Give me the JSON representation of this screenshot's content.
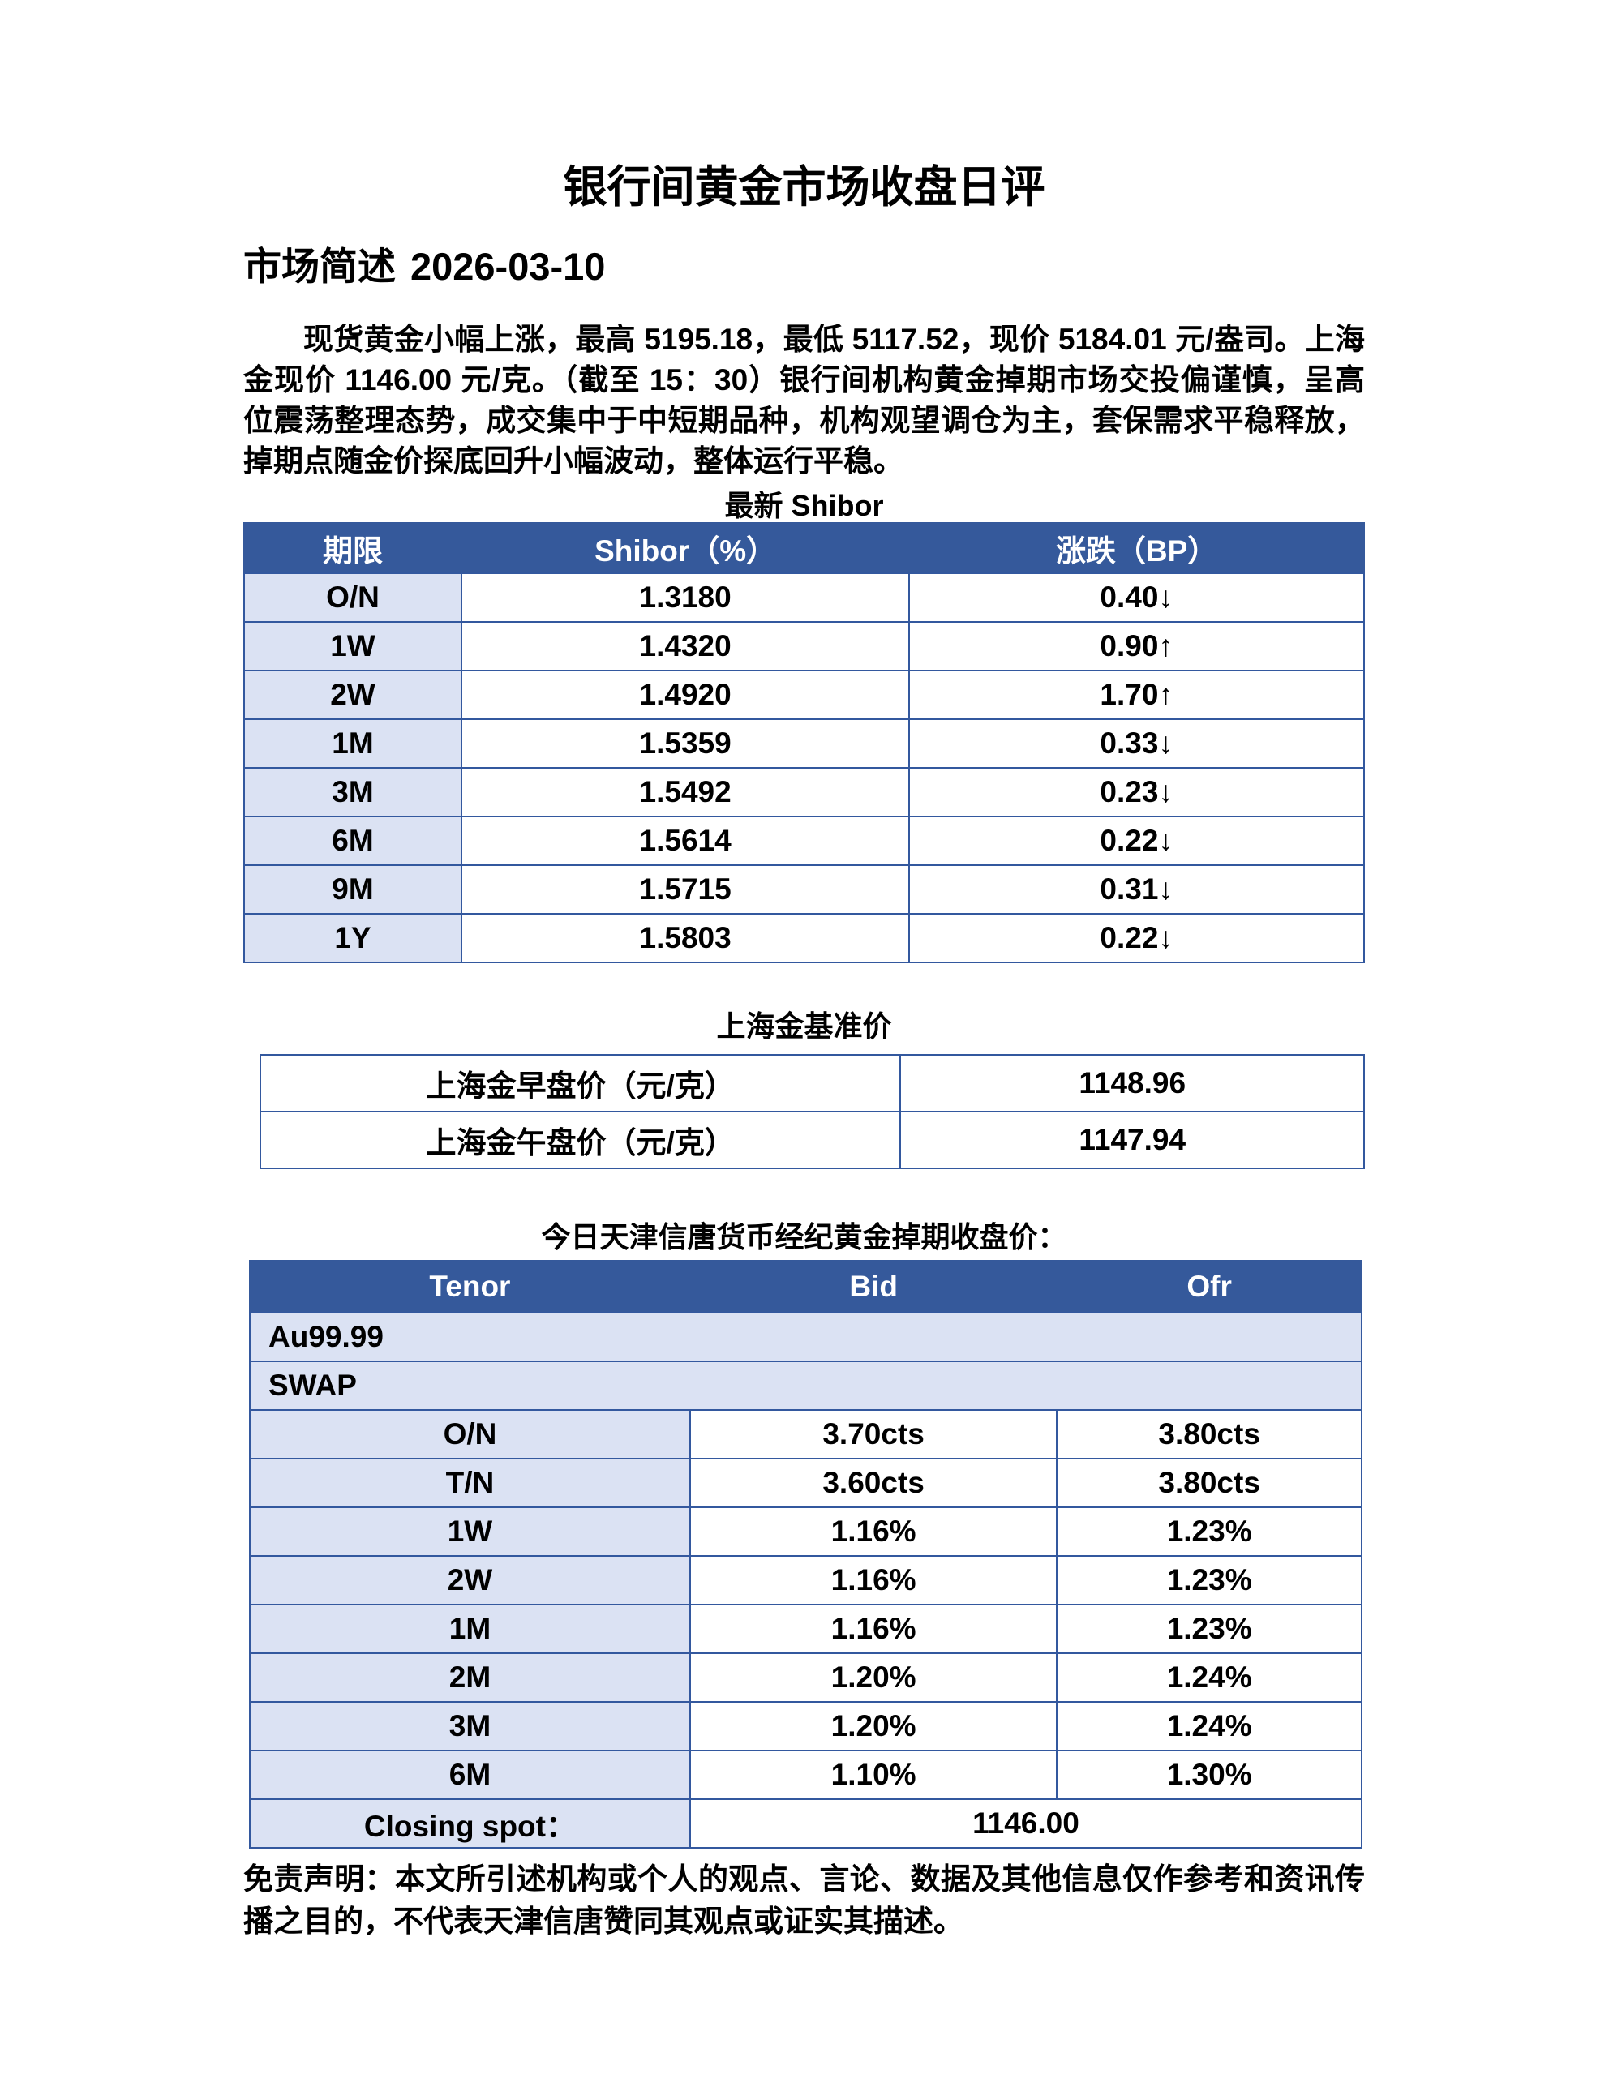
{
  "doc": {
    "title": "银行间黄金市场收盘日评",
    "section_heading": "市场简述",
    "date": "2026-03-10",
    "summary": "现货黄金小幅上涨，最高 5195.18，最低 5117.52，现价 5184.01 元/盎司。上海金现价 1146.00 元/克。（截至 15：30）银行间机构黄金掉期市场交投偏谨慎，呈高位震荡整理态势，成交集中于中短期品种，机构观望调仓为主，套保需求平稳释放，掉期点随金价探底回升小幅波动，整体运行平稳。",
    "disclaimer": "免责声明：本文所引述机构或个人的观点、言论、数据及其他信息仅作参考和资讯传播之目的，不代表天津信唐赞同其观点或证实其描述。"
  },
  "shibor_table": {
    "title": "最新 Shibor",
    "headers": [
      "期限",
      "Shibor（%）",
      "涨跌（BP）"
    ],
    "rows": [
      {
        "tenor": "O/N",
        "rate": "1.3180",
        "change": "0.40",
        "arrow": "↓"
      },
      {
        "tenor": "1W",
        "rate": "1.4320",
        "change": "0.90",
        "arrow": "↑"
      },
      {
        "tenor": "2W",
        "rate": "1.4920",
        "change": "1.70",
        "arrow": "↑"
      },
      {
        "tenor": "1M",
        "rate": "1.5359",
        "change": "0.33",
        "arrow": "↓"
      },
      {
        "tenor": "3M",
        "rate": "1.5492",
        "change": "0.23",
        "arrow": "↓"
      },
      {
        "tenor": "6M",
        "rate": "1.5614",
        "change": "0.22",
        "arrow": "↓"
      },
      {
        "tenor": "9M",
        "rate": "1.5715",
        "change": "0.31",
        "arrow": "↓"
      },
      {
        "tenor": "1Y",
        "rate": "1.5803",
        "change": "0.22",
        "arrow": "↓"
      }
    ]
  },
  "sh_gold_table": {
    "title": "上海金基准价",
    "rows": [
      {
        "label": "上海金早盘价（元/克）",
        "value": "1148.96"
      },
      {
        "label": "上海金午盘价（元/克）",
        "value": "1147.94"
      }
    ]
  },
  "swap_table": {
    "title": "今日天津信唐货币经纪黄金掉期收盘价：",
    "product": "Au99.99",
    "instrument": "SWAP",
    "headers": [
      "Tenor",
      "Bid",
      "Ofr"
    ],
    "rows": [
      {
        "tenor": "O/N",
        "bid": "3.70cts",
        "ofr": "3.80cts"
      },
      {
        "tenor": "T/N",
        "bid": "3.60cts",
        "ofr": "3.80cts"
      },
      {
        "tenor": "1W",
        "bid": "1.16%",
        "ofr": "1.23%"
      },
      {
        "tenor": "2W",
        "bid": "1.16%",
        "ofr": "1.23%"
      },
      {
        "tenor": "1M",
        "bid": "1.16%",
        "ofr": "1.23%"
      },
      {
        "tenor": "2M",
        "bid": "1.20%",
        "ofr": "1.24%"
      },
      {
        "tenor": "3M",
        "bid": "1.20%",
        "ofr": "1.24%"
      },
      {
        "tenor": "6M",
        "bid": "1.10%",
        "ofr": "1.30%"
      }
    ],
    "closing_spot_label": "Closing spot：",
    "closing_spot_value": "1146.00"
  },
  "colors": {
    "header_bg": "#35599B",
    "header_text": "#FFFFFF",
    "row_accent": "#DBE2F3",
    "border": "#33589E",
    "text": "#000000",
    "page_bg": "#FFFFFF"
  }
}
